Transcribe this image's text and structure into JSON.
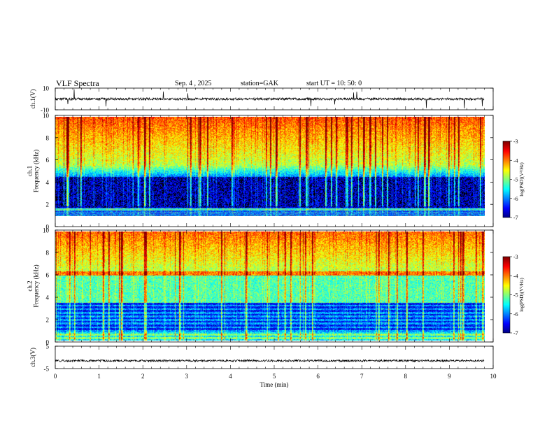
{
  "header": {
    "title": "VLF  Spectra",
    "date": "Sep. 4   , 2025",
    "station": "station=GAK",
    "start": "start  UT  =    10: 50: 0"
  },
  "chart_data": [
    {
      "type": "line",
      "name": "ch1-waveform",
      "ylabel": "ch.1(V)",
      "ylim": [
        -10,
        10
      ],
      "yticks": [
        "10",
        "-10"
      ],
      "baseline": 0,
      "xlim": [
        0,
        10
      ]
    },
    {
      "type": "heatmap",
      "name": "ch1-spectrogram",
      "ylabel": "ch.1\nFrequency  (kHz)",
      "ylim": [
        0,
        10
      ],
      "yticks": [
        "0",
        "2",
        "4",
        "6",
        "8",
        "10"
      ],
      "xlim": [
        0,
        10
      ],
      "data_end_min": 9.8,
      "colorbar": {
        "label": "log(PSD)(V²/Hz)",
        "ticks": [
          "-3",
          "-4",
          "-5",
          "-6",
          "-7"
        ],
        "range": [
          -7,
          -3
        ]
      }
    },
    {
      "type": "heatmap",
      "name": "ch2-spectrogram",
      "ylabel": "ch.2\nFrequency  (kHz)",
      "ylim": [
        0,
        10
      ],
      "yticks": [
        "0",
        "2",
        "4",
        "6",
        "8",
        "10"
      ],
      "xlim": [
        0,
        10
      ],
      "data_end_min": 9.8,
      "colorbar": {
        "label": "log(PSD)(V²/Hz)",
        "ticks": [
          "-3",
          "-4",
          "-5",
          "-6",
          "-7"
        ],
        "range": [
          -7,
          -3
        ]
      }
    },
    {
      "type": "line",
      "name": "ch3-waveform",
      "ylabel": "ch.3(V)",
      "ylim": [
        -5,
        5
      ],
      "yticks": [
        "5",
        "-5"
      ],
      "baseline": -1.5,
      "xlim": [
        0,
        10
      ],
      "xticks": [
        "0",
        "1",
        "2",
        "3",
        "4",
        "5",
        "6",
        "7",
        "8",
        "9",
        "10"
      ],
      "xlabel": "Time  (min)"
    }
  ]
}
